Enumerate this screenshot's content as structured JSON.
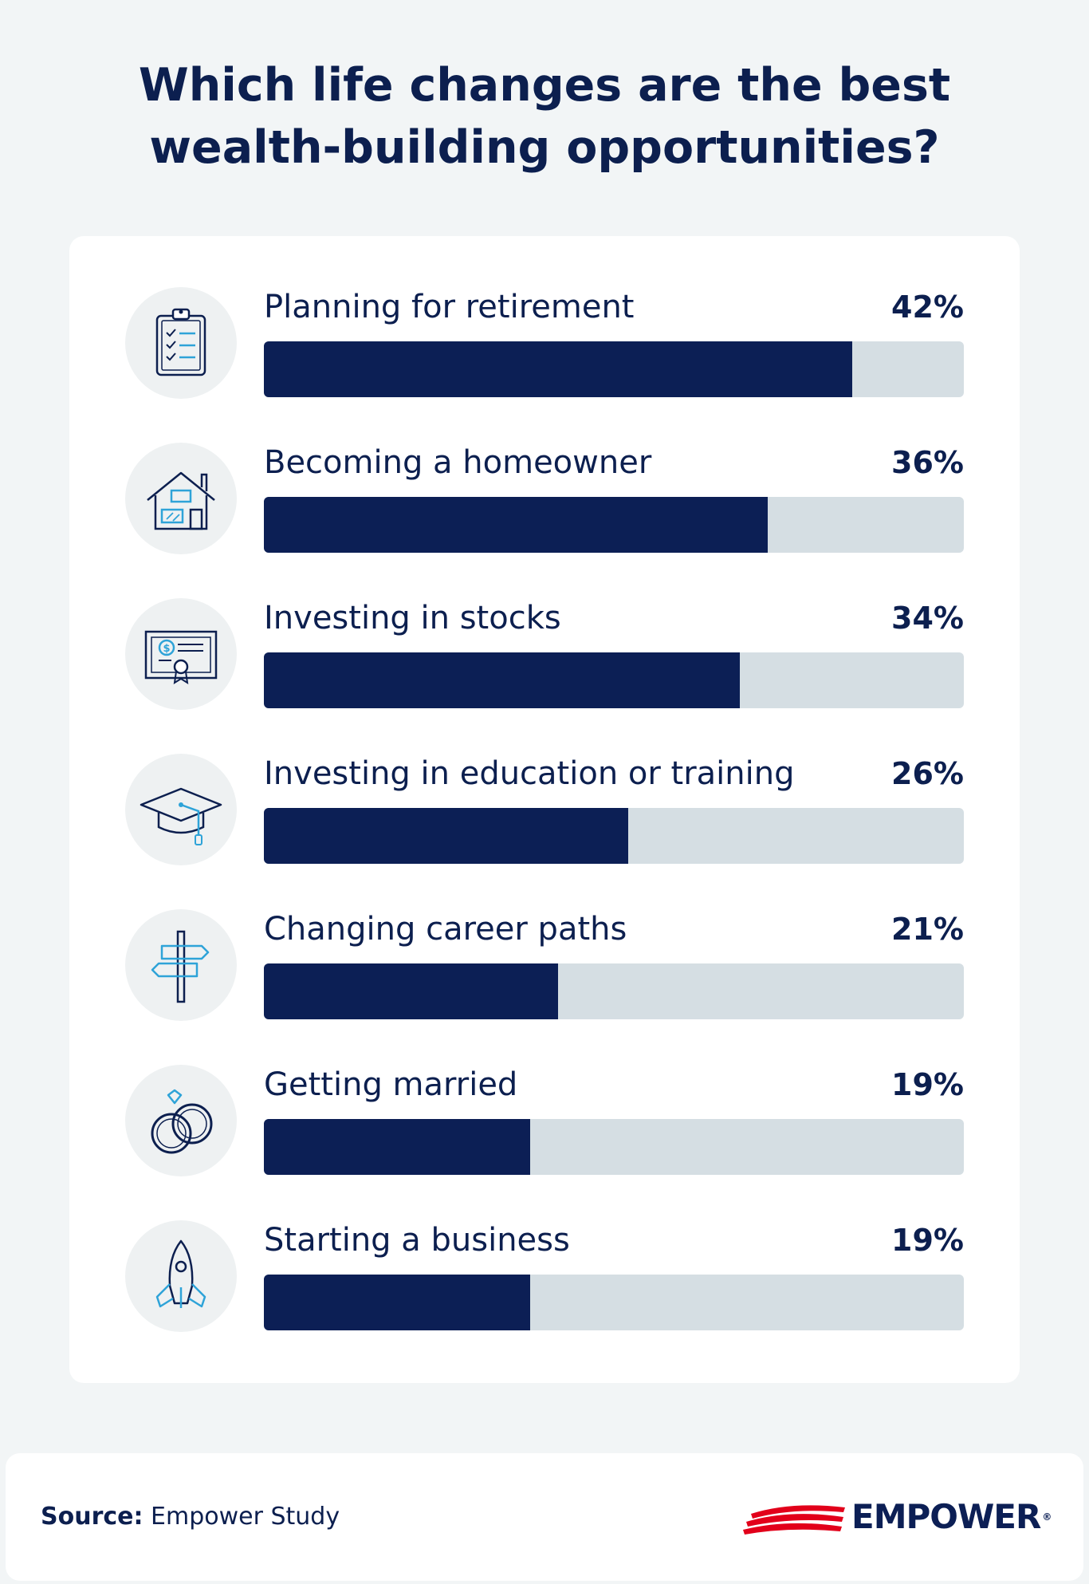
{
  "title_line1": "Which life changes are the best",
  "title_line2": "wealth-building opportunities?",
  "colors": {
    "bar": "#0c1f55",
    "track": "#d5dee3",
    "text": "#0c1f4f",
    "accent": "#2ea3d8",
    "logo_red": "#e2001a"
  },
  "chart_data": {
    "type": "bar",
    "orientation": "horizontal",
    "categories": [
      "Planning for retirement",
      "Becoming a homeowner",
      "Investing in stocks",
      "Investing in education or training",
      "Changing career paths",
      "Getting married",
      "Starting a business"
    ],
    "values": [
      42,
      36,
      34,
      26,
      21,
      19,
      19
    ],
    "value_labels": [
      "42%",
      "36%",
      "34%",
      "26%",
      "21%",
      "19%",
      "19%"
    ],
    "xlim": [
      0,
      50
    ],
    "icons": [
      "clipboard-checklist-icon",
      "house-icon",
      "stock-certificate-icon",
      "graduation-cap-icon",
      "signpost-icon",
      "wedding-rings-icon",
      "rocket-icon"
    ]
  },
  "footer": {
    "source_label": "Source:",
    "source_text": "Empower Study",
    "logo_text": "EMPOWER",
    "logo_mark": "®"
  }
}
